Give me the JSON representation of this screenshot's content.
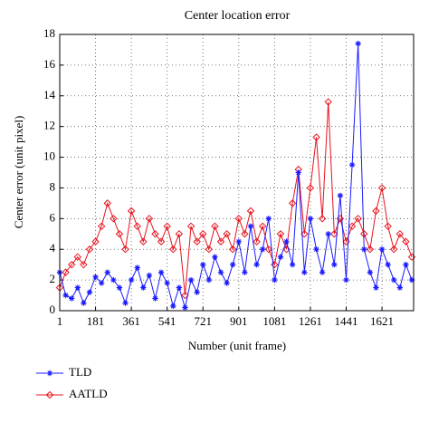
{
  "chart_data": {
    "type": "line",
    "title": "Center location error",
    "xlabel": "Number (unit frame)",
    "ylabel": "Center error (unit pixel)",
    "x": [
      1,
      31,
      61,
      91,
      121,
      151,
      181,
      211,
      241,
      271,
      301,
      331,
      361,
      391,
      421,
      451,
      481,
      511,
      541,
      571,
      601,
      631,
      661,
      691,
      721,
      751,
      781,
      811,
      841,
      871,
      901,
      931,
      961,
      991,
      1021,
      1051,
      1081,
      1111,
      1141,
      1171,
      1201,
      1231,
      1261,
      1291,
      1321,
      1351,
      1381,
      1411,
      1441,
      1471,
      1501,
      1531,
      1561,
      1591,
      1621,
      1651,
      1681,
      1711,
      1741,
      1771
    ],
    "series": [
      {
        "name": "TLD",
        "color": "#1a1aff",
        "marker": "asterisk",
        "values": [
          2.5,
          1,
          0.8,
          1.5,
          0.5,
          1.2,
          2.2,
          1.8,
          2.5,
          2,
          1.5,
          0.5,
          2,
          2.8,
          1.5,
          2.3,
          0.8,
          2.5,
          1.8,
          0.3,
          1.5,
          0.2,
          2,
          1.2,
          3,
          2,
          3.5,
          2.5,
          1.8,
          3,
          4.5,
          2.5,
          5.5,
          3,
          4,
          6,
          2,
          3.5,
          4.5,
          3,
          9,
          2.5,
          6,
          4,
          2.5,
          5,
          3,
          7.5,
          2,
          9.5,
          17.4,
          4,
          2.5,
          1.5,
          4,
          3,
          2,
          1.5,
          3,
          2
        ]
      },
      {
        "name": "AATLD",
        "color": "#e8141e",
        "marker": "diamond",
        "values": [
          1.5,
          2.5,
          3,
          3.5,
          3,
          4,
          4.5,
          5.5,
          7,
          6,
          5,
          4,
          6.5,
          5.5,
          4.5,
          6,
          5,
          4.5,
          5.5,
          4,
          5,
          1,
          5.5,
          4.5,
          5,
          4,
          5.5,
          4.5,
          5,
          4,
          6,
          5,
          6.5,
          4.5,
          5.5,
          4,
          3,
          5,
          4,
          7,
          9.2,
          5,
          8,
          11.3,
          6,
          13.6,
          5,
          6,
          4.5,
          5.5,
          6,
          5,
          4,
          6.5,
          8,
          5.5,
          4,
          5,
          4.5,
          3.5
        ]
      }
    ],
    "xlim": [
      1,
      1780
    ],
    "ylim": [
      0,
      18
    ],
    "xticks": [
      1,
      181,
      361,
      541,
      721,
      901,
      1081,
      1261,
      1441,
      1621
    ],
    "yticks": [
      0,
      2,
      4,
      6,
      8,
      10,
      12,
      14,
      16,
      18
    ],
    "grid": true,
    "legend": "bottom-left"
  }
}
